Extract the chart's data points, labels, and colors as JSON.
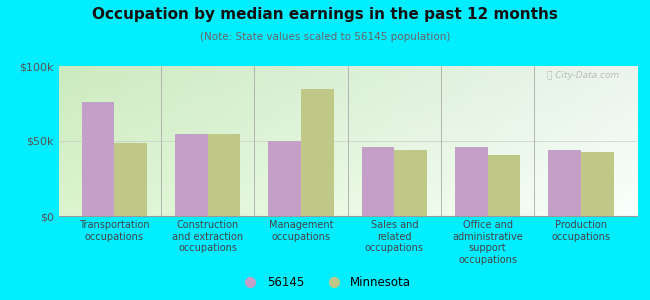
{
  "title": "Occupation by median earnings in the past 12 months",
  "subtitle": "(Note: State values scaled to 56145 population)",
  "background_outer": "#00eeff",
  "categories": [
    "Transportation\noccupations",
    "Construction\nand extraction\noccupations",
    "Management\noccupations",
    "Sales and\nrelated\noccupations",
    "Office and\nadministrative\nsupport\noccupations",
    "Production\noccupations"
  ],
  "values_56145": [
    76000,
    55000,
    50000,
    46000,
    46000,
    44000
  ],
  "values_minnesota": [
    49000,
    55000,
    85000,
    44000,
    41000,
    43000
  ],
  "color_56145": "#c4a0c8",
  "color_minnesota": "#c0c888",
  "ylim": [
    0,
    100000
  ],
  "ytick_labels": [
    "$0",
    "$50k",
    "$100k"
  ],
  "legend_label_1": "56145",
  "legend_label_2": "Minnesota",
  "bar_width": 0.35
}
